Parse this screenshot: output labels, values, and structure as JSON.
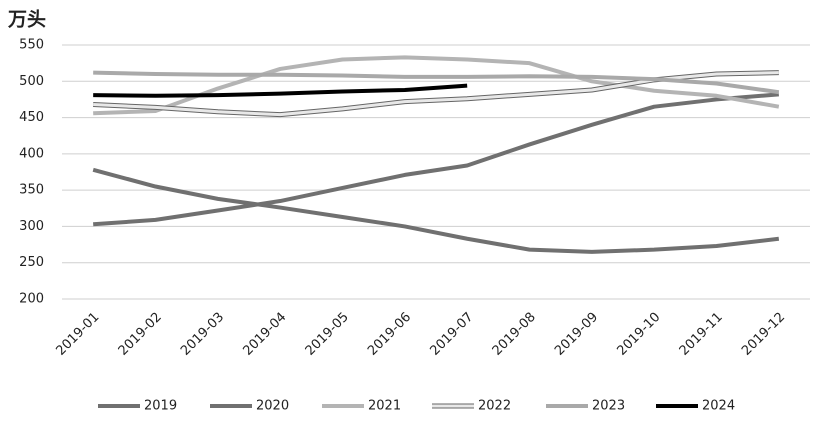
{
  "chart_data": {
    "type": "line",
    "y_label": "万头",
    "categories": [
      "2019-01",
      "2019-02",
      "2019-03",
      "2019-04",
      "2019-05",
      "2019-06",
      "2019-07",
      "2019-08",
      "2019-09",
      "2019-10",
      "2019-11",
      "2019-12"
    ],
    "series": [
      {
        "name": "2019",
        "color": "#707070",
        "values": [
          303,
          309,
          322,
          335,
          353,
          371,
          384,
          413,
          440,
          465,
          475,
          482
        ]
      },
      {
        "name": "2020",
        "color": "#707070",
        "values": [
          378,
          355,
          338,
          326,
          313,
          300,
          283,
          268,
          265,
          268,
          273,
          283
        ]
      },
      {
        "name": "2021",
        "color": "#b4b4b4",
        "values": [
          456,
          459,
          490,
          517,
          530,
          533,
          530,
          525,
          500,
          487,
          480,
          465
        ]
      },
      {
        "name": "2022",
        "color": "#e8e8e8",
        "outline": "#666666",
        "values": [
          468,
          464,
          458,
          454,
          462,
          472,
          476,
          482,
          488,
          502,
          510,
          512
        ]
      },
      {
        "name": "2023",
        "color": "#a9a9a9",
        "values": [
          512,
          510,
          509,
          509,
          508,
          506,
          506,
          507,
          506,
          503,
          497,
          485
        ]
      },
      {
        "name": "2024",
        "color": "#000000",
        "values": [
          481,
          480,
          481,
          483,
          486,
          488,
          494,
          null,
          null,
          null,
          null,
          null
        ]
      }
    ],
    "ylim": [
      200,
      550
    ],
    "yticks": [
      200,
      250,
      300,
      350,
      400,
      450,
      500,
      550
    ],
    "grid": true,
    "legend": "bottom"
  }
}
